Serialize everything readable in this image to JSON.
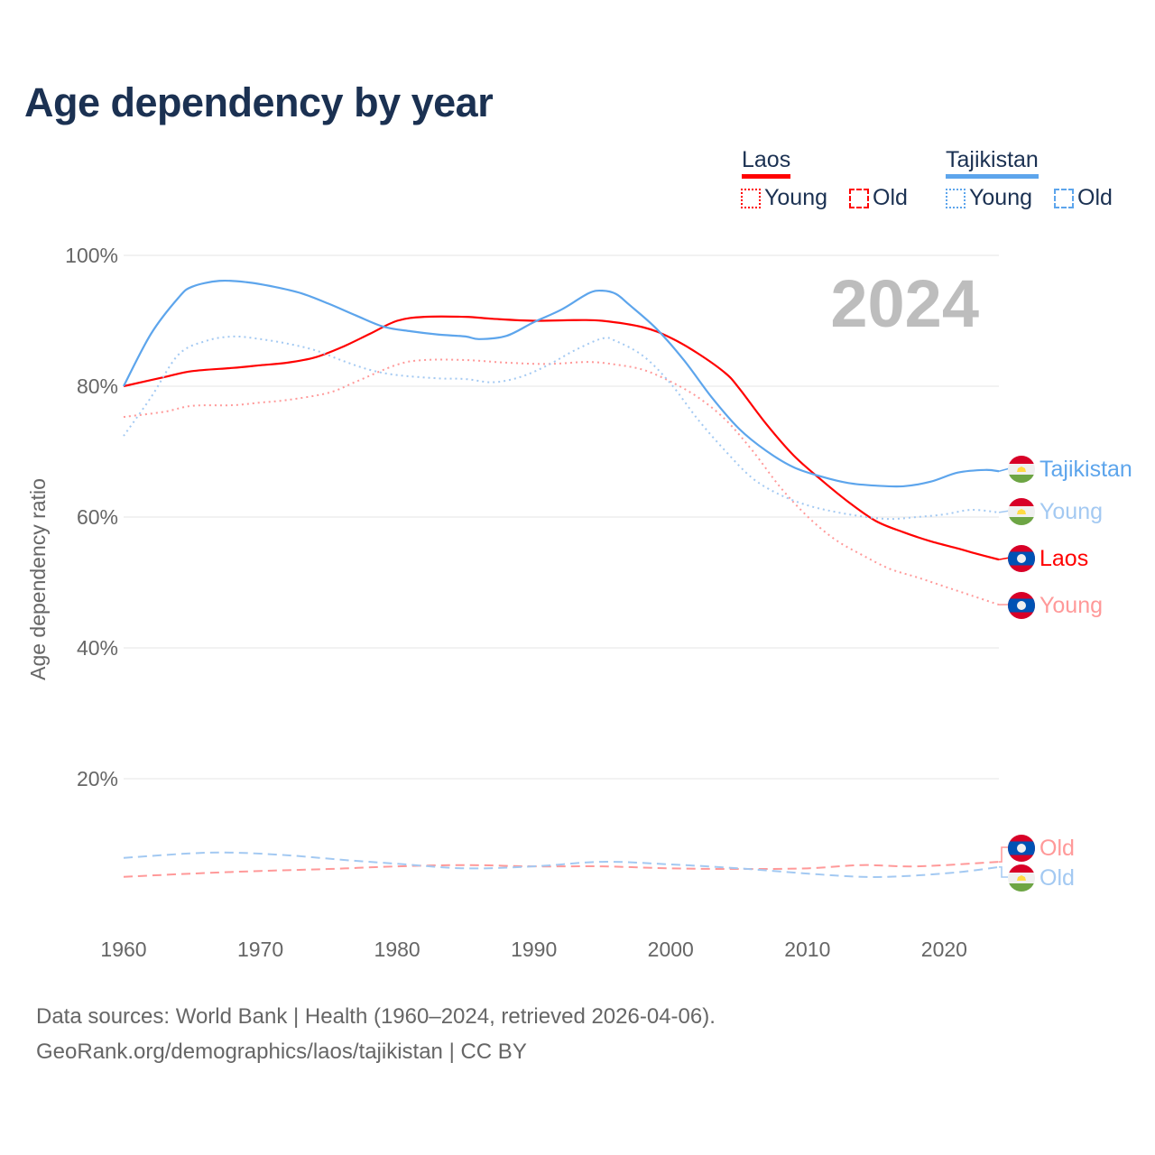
{
  "title": "Age dependency by year",
  "legend": {
    "countries": [
      {
        "name": "Laos",
        "color": "#ff0000",
        "items": [
          "Young",
          "Old"
        ]
      },
      {
        "name": "Tajikistan",
        "color": "#5da5ec",
        "items": [
          "Young",
          "Old"
        ]
      }
    ]
  },
  "year_watermark": "2024",
  "footer": {
    "line1": "Data sources: World Bank | Health (1960–2024, retrieved 2026-04-06).",
    "line2": "GeoRank.org/demographics/laos/tajikistan | CC BY"
  },
  "chart_data": {
    "type": "line",
    "title": "Age dependency by year",
    "xlabel": "",
    "ylabel": "Age dependency ratio",
    "xlim": [
      1960,
      2024
    ],
    "ylim": [
      0,
      100
    ],
    "xticks": [
      "1960",
      "1970",
      "1980",
      "1990",
      "2000",
      "2010",
      "2020"
    ],
    "yticks": [
      "20%",
      "40%",
      "60%",
      "80%",
      "100%"
    ],
    "grid": true,
    "legend_position": "top-right",
    "series": [
      {
        "name": "Laos",
        "label": "Laos",
        "color": "#ff0000",
        "style": "solid",
        "points": [
          [
            1960,
            80.0
          ],
          [
            1963,
            81.4
          ],
          [
            1965,
            82.3
          ],
          [
            1968,
            82.8
          ],
          [
            1970,
            83.2
          ],
          [
            1972,
            83.6
          ],
          [
            1974,
            84.4
          ],
          [
            1976,
            86.0
          ],
          [
            1978,
            88.0
          ],
          [
            1980,
            90.0
          ],
          [
            1982,
            90.6
          ],
          [
            1985,
            90.6
          ],
          [
            1987,
            90.3
          ],
          [
            1990,
            90.0
          ],
          [
            1993,
            90.1
          ],
          [
            1995,
            90.0
          ],
          [
            1998,
            89.0
          ],
          [
            2000,
            87.4
          ],
          [
            2002,
            85.0
          ],
          [
            2004,
            82.0
          ],
          [
            2005,
            79.7
          ],
          [
            2007,
            74.2
          ],
          [
            2009,
            69.4
          ],
          [
            2011,
            65.7
          ],
          [
            2013,
            62.3
          ],
          [
            2015,
            59.4
          ],
          [
            2017,
            57.7
          ],
          [
            2019,
            56.3
          ],
          [
            2021,
            55.2
          ],
          [
            2022,
            54.6
          ],
          [
            2024,
            53.5
          ]
        ]
      },
      {
        "name": "Laos Young",
        "label": "Young",
        "color": "#ff9999",
        "style": "dotted",
        "points": [
          [
            1960,
            75.3
          ],
          [
            1963,
            76.1
          ],
          [
            1965,
            77.0
          ],
          [
            1968,
            77.1
          ],
          [
            1970,
            77.5
          ],
          [
            1972,
            77.9
          ],
          [
            1975,
            79.0
          ],
          [
            1977,
            80.7
          ],
          [
            1980,
            83.3
          ],
          [
            1982,
            84.0
          ],
          [
            1985,
            84.0
          ],
          [
            1988,
            83.6
          ],
          [
            1991,
            83.4
          ],
          [
            1994,
            83.7
          ],
          [
            1996,
            83.3
          ],
          [
            1998,
            82.5
          ],
          [
            2000,
            80.7
          ],
          [
            2002,
            78.3
          ],
          [
            2004,
            74.9
          ],
          [
            2006,
            70.1
          ],
          [
            2008,
            64.6
          ],
          [
            2010,
            60.1
          ],
          [
            2012,
            56.6
          ],
          [
            2014,
            54.2
          ],
          [
            2016,
            52.1
          ],
          [
            2018,
            50.8
          ],
          [
            2020,
            49.4
          ],
          [
            2022,
            48.0
          ],
          [
            2024,
            46.6
          ]
        ]
      },
      {
        "name": "Laos Old",
        "label": "Old",
        "color": "#ff9999",
        "style": "dashed",
        "points": [
          [
            1960,
            5.0
          ],
          [
            1965,
            5.5
          ],
          [
            1970,
            5.9
          ],
          [
            1975,
            6.2
          ],
          [
            1980,
            6.6
          ],
          [
            1985,
            6.8
          ],
          [
            1990,
            6.6
          ],
          [
            1995,
            6.6
          ],
          [
            2000,
            6.3
          ],
          [
            2005,
            6.2
          ],
          [
            2010,
            6.3
          ],
          [
            2014,
            6.8
          ],
          [
            2018,
            6.6
          ],
          [
            2024,
            7.3
          ]
        ]
      },
      {
        "name": "Tajikistan",
        "label": "Tajikistan",
        "color": "#5da5ec",
        "style": "solid",
        "points": [
          [
            1960,
            80.0
          ],
          [
            1962,
            88.0
          ],
          [
            1964,
            93.5
          ],
          [
            1965,
            95.2
          ],
          [
            1967,
            96.1
          ],
          [
            1969,
            95.9
          ],
          [
            1971,
            95.2
          ],
          [
            1973,
            94.2
          ],
          [
            1975,
            92.6
          ],
          [
            1977,
            90.8
          ],
          [
            1979,
            89.1
          ],
          [
            1981,
            88.4
          ],
          [
            1983,
            87.9
          ],
          [
            1985,
            87.6
          ],
          [
            1986,
            87.2
          ],
          [
            1988,
            87.7
          ],
          [
            1990,
            89.8
          ],
          [
            1992,
            91.7
          ],
          [
            1994,
            94.2
          ],
          [
            1995,
            94.6
          ],
          [
            1996,
            94.1
          ],
          [
            1997,
            92.4
          ],
          [
            1999,
            88.7
          ],
          [
            2001,
            83.9
          ],
          [
            2003,
            78.3
          ],
          [
            2005,
            73.5
          ],
          [
            2007,
            70.1
          ],
          [
            2009,
            67.6
          ],
          [
            2011,
            66.2
          ],
          [
            2013,
            65.2
          ],
          [
            2015,
            64.8
          ],
          [
            2017,
            64.7
          ],
          [
            2019,
            65.4
          ],
          [
            2021,
            66.8
          ],
          [
            2023,
            67.2
          ],
          [
            2024,
            67.0
          ]
        ]
      },
      {
        "name": "Tajikistan Young",
        "label": "Young",
        "color": "#a3c9f2",
        "style": "dotted",
        "points": [
          [
            1960,
            72.4
          ],
          [
            1962,
            78.3
          ],
          [
            1964,
            84.8
          ],
          [
            1966,
            86.9
          ],
          [
            1968,
            87.6
          ],
          [
            1970,
            87.2
          ],
          [
            1972,
            86.5
          ],
          [
            1974,
            85.5
          ],
          [
            1976,
            83.9
          ],
          [
            1978,
            82.5
          ],
          [
            1980,
            81.7
          ],
          [
            1983,
            81.2
          ],
          [
            1985,
            81.1
          ],
          [
            1987,
            80.6
          ],
          [
            1989,
            81.4
          ],
          [
            1991,
            83.2
          ],
          [
            1993,
            85.5
          ],
          [
            1995,
            87.3
          ],
          [
            1996,
            86.9
          ],
          [
            1998,
            84.6
          ],
          [
            2000,
            80.4
          ],
          [
            2002,
            74.9
          ],
          [
            2004,
            70.1
          ],
          [
            2006,
            65.9
          ],
          [
            2008,
            63.4
          ],
          [
            2010,
            61.8
          ],
          [
            2012,
            60.8
          ],
          [
            2014,
            60.1
          ],
          [
            2016,
            59.7
          ],
          [
            2018,
            60.0
          ],
          [
            2020,
            60.4
          ],
          [
            2022,
            61.1
          ],
          [
            2024,
            60.7
          ]
        ]
      },
      {
        "name": "Tajikistan Old",
        "label": "Old",
        "color": "#a3c9f2",
        "style": "dashed",
        "points": [
          [
            1960,
            7.9
          ],
          [
            1965,
            8.6
          ],
          [
            1968,
            8.7
          ],
          [
            1972,
            8.3
          ],
          [
            1976,
            7.6
          ],
          [
            1980,
            7.0
          ],
          [
            1985,
            6.3
          ],
          [
            1990,
            6.6
          ],
          [
            1995,
            7.3
          ],
          [
            2000,
            6.9
          ],
          [
            2005,
            6.3
          ],
          [
            2010,
            5.5
          ],
          [
            2014,
            5.0
          ],
          [
            2017,
            5.1
          ],
          [
            2021,
            5.7
          ],
          [
            2024,
            6.5
          ]
        ]
      }
    ]
  }
}
